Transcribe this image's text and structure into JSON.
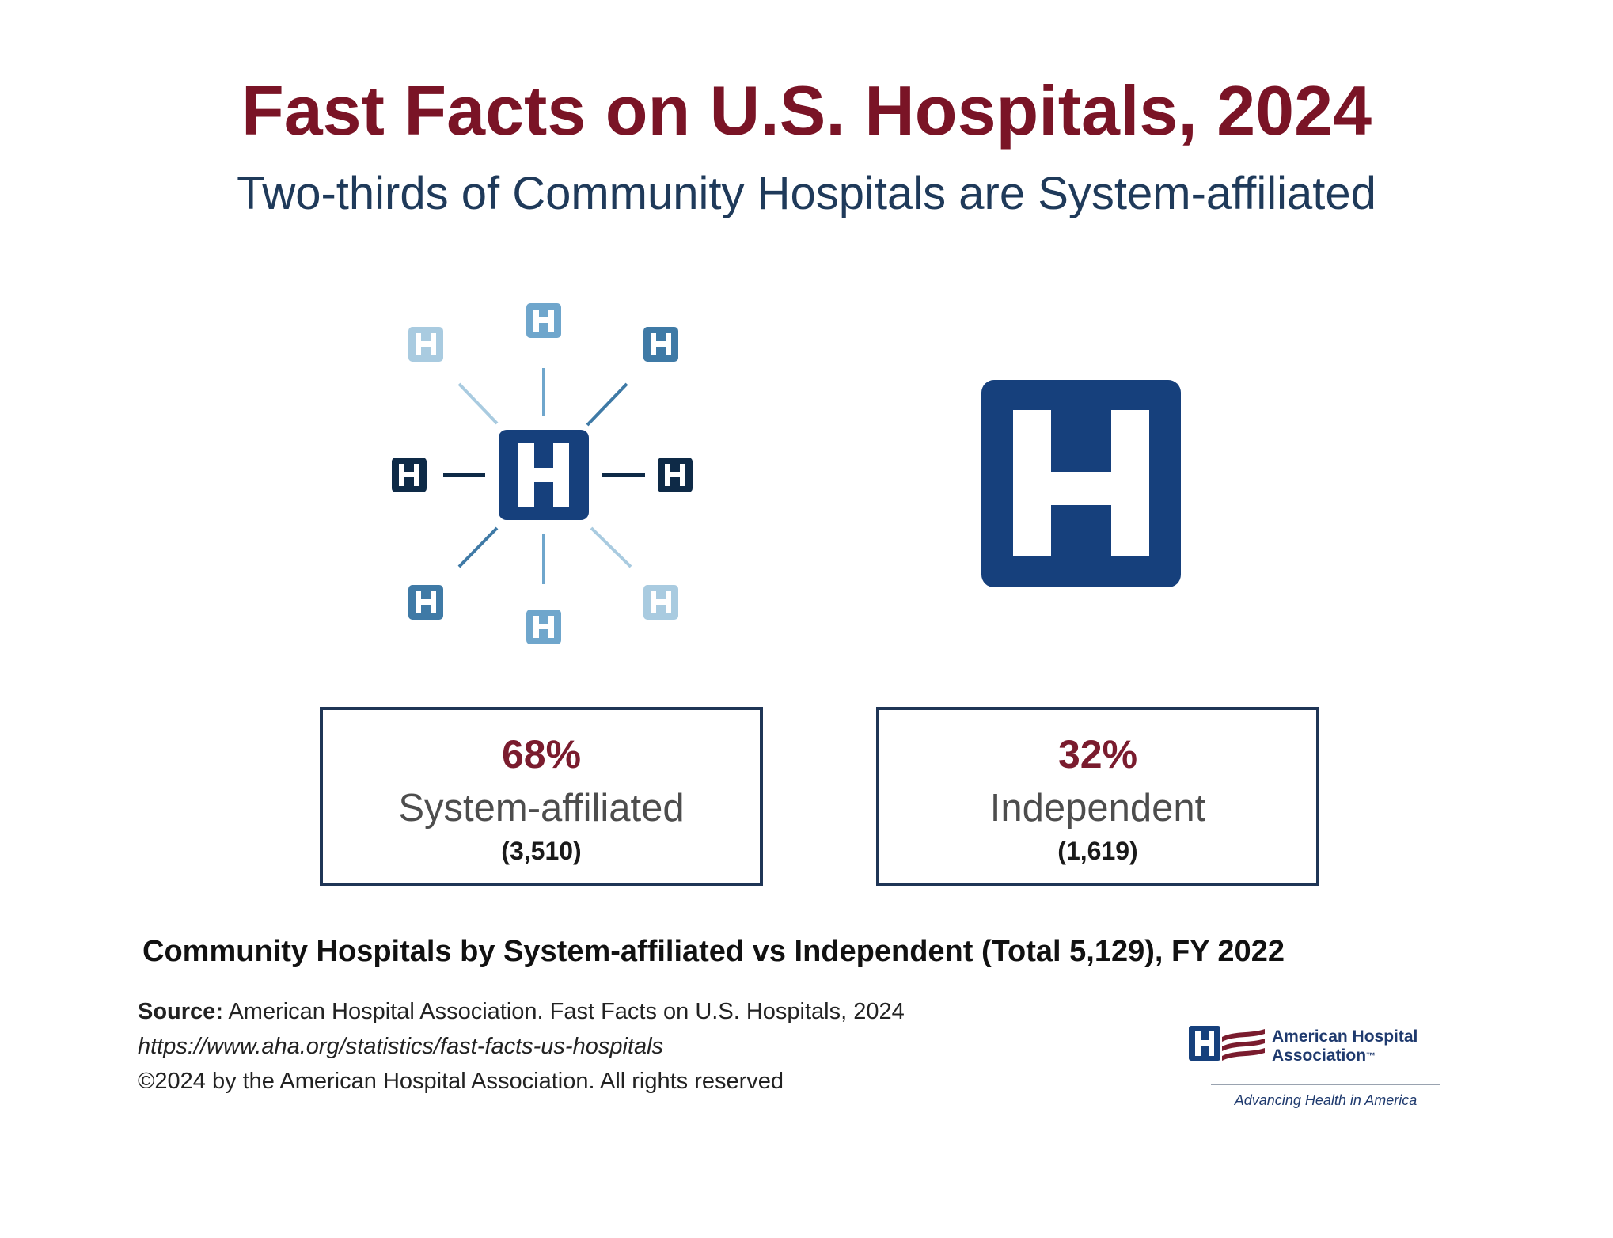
{
  "header": {
    "title": "Fast Facts on U.S. Hospitals, 2024",
    "subtitle": "Two-thirds of Community Hospitals are System-affiliated"
  },
  "icons": {
    "hub": "hospital-network-icon",
    "single": "hospital-icon",
    "satellite_letter": "H"
  },
  "stats": [
    {
      "percent": "68%",
      "label": "System-affiliated",
      "count": "(3,510)"
    },
    {
      "percent": "32%",
      "label": "Independent",
      "count": "(1,619)"
    }
  ],
  "caption": "Community Hospitals by System-affiliated vs Independent (Total 5,129), FY 2022",
  "source": {
    "label": "Source:",
    "text": "American Hospital Association. Fast Facts on U.S. Hospitals, 2024",
    "url": "https://www.aha.org/statistics/fast-facts-us-hospitals",
    "copyright": "©2024 by the American Hospital Association. All rights reserved"
  },
  "logo": {
    "name_line1": "American Hospital",
    "name_line2": "Association",
    "tm": "™",
    "tagline": "Advancing Health in America"
  },
  "colors": {
    "title": "#7a1426",
    "subtitle": "#1f3a5a",
    "navy": "#16407c",
    "dark_navy": "#0e2a47",
    "percent": "#7a1c2e",
    "box_border": "#1f3556",
    "light_blue": "#a9cbe0",
    "mid_blue": "#6fa6cc",
    "steel_blue": "#3f7aa6"
  }
}
